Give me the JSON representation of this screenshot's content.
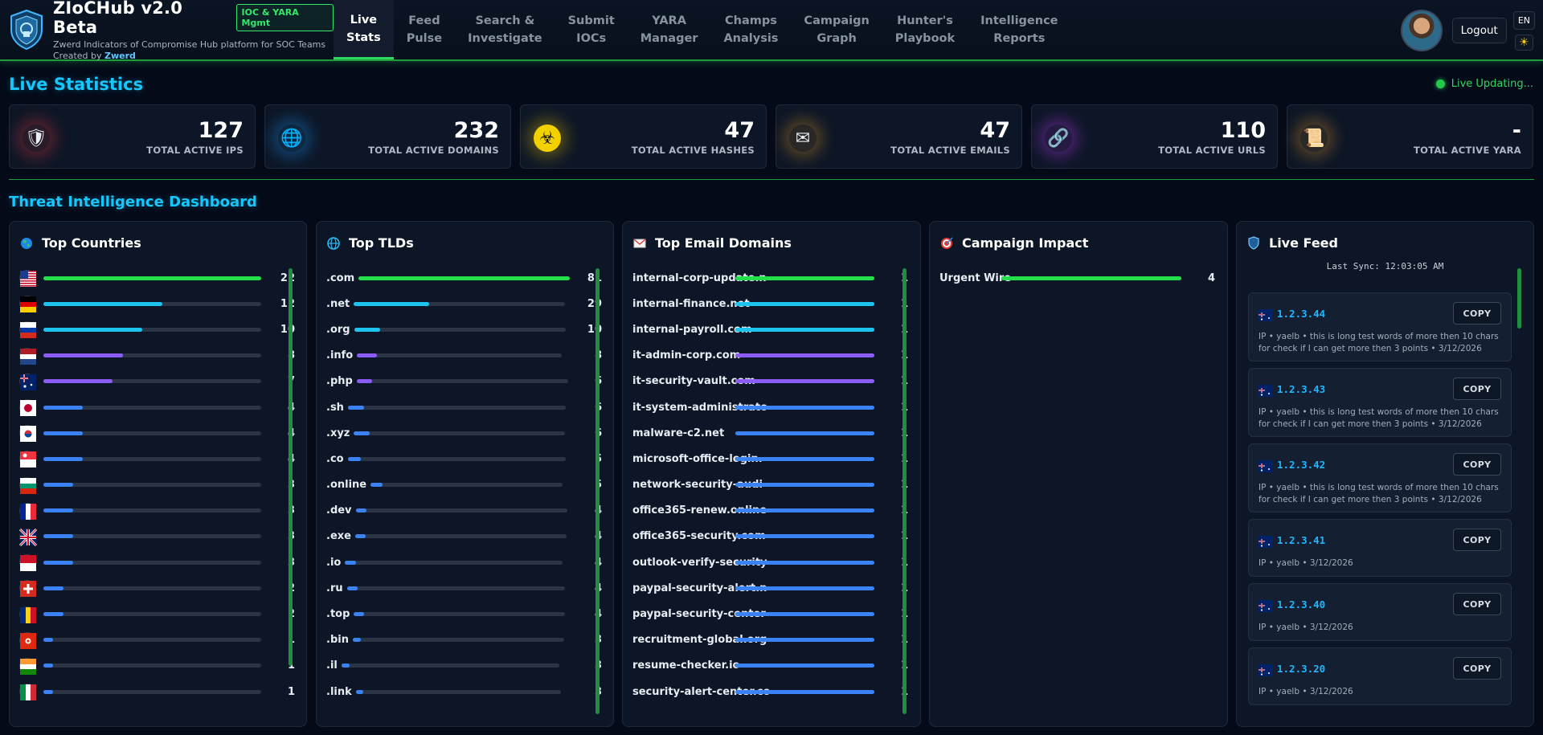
{
  "brand": {
    "title": "ZIoCHub v2.0 Beta",
    "badge": "IOC & YARA Mgmt",
    "subtitle": "Zwerd Indicators of Compromise Hub platform for SOC Teams",
    "credit_prefix": "Created by",
    "credit_name": "Zwerd"
  },
  "nav": [
    {
      "line1": "Live",
      "line2": "Stats",
      "active": true
    },
    {
      "line1": "Feed",
      "line2": "Pulse"
    },
    {
      "line1": "Search &",
      "line2": "Investigate"
    },
    {
      "line1": "Submit",
      "line2": "IOCs"
    },
    {
      "line1": "YARA",
      "line2": "Manager"
    },
    {
      "line1": "Champs",
      "line2": "Analysis"
    },
    {
      "line1": "Campaign",
      "line2": "Graph"
    },
    {
      "line1": "Hunter's",
      "line2": "Playbook"
    },
    {
      "line1": "Intelligence",
      "line2": "Reports"
    }
  ],
  "header_right": {
    "logout": "Logout",
    "lang": "EN",
    "theme_icon": "sun-icon"
  },
  "live": {
    "title": "Live Statistics",
    "status": "Live Updating..."
  },
  "stats": [
    {
      "value": "127",
      "label": "TOTAL ACTIVE IPS",
      "icon": "shield-icon",
      "glow": "#e23b3b"
    },
    {
      "value": "232",
      "label": "TOTAL ACTIVE DOMAINS",
      "icon": "globe-icon",
      "glow": "#1a9cff"
    },
    {
      "value": "47",
      "label": "TOTAL ACTIVE HASHES",
      "icon": "biohazard-icon",
      "glow": "#e6c300"
    },
    {
      "value": "47",
      "label": "TOTAL ACTIVE EMAILS",
      "icon": "envelope-icon",
      "glow": "#e09a2a"
    },
    {
      "value": "110",
      "label": "TOTAL ACTIVE URLS",
      "icon": "link-icon",
      "glow": "#c23bff"
    },
    {
      "value": "-",
      "label": "TOTAL ACTIVE YARA",
      "icon": "scroll-icon",
      "glow": "#e09a2a"
    }
  ],
  "dashboard": {
    "title": "Threat Intelligence Dashboard"
  },
  "countries": {
    "title": "Top Countries",
    "max": 22,
    "rows": [
      {
        "flag": "us",
        "value": 22,
        "color": "#22e04a"
      },
      {
        "flag": "de",
        "value": 12,
        "color": "#1ec4f0"
      },
      {
        "flag": "ru",
        "value": 10,
        "color": "#1ec4f0"
      },
      {
        "flag": "nl",
        "value": 8,
        "color": "#8b5cf6"
      },
      {
        "flag": "au",
        "value": 7,
        "color": "#8b5cf6"
      },
      {
        "flag": "jp",
        "value": 4,
        "color": "#3b82f6"
      },
      {
        "flag": "kr",
        "value": 4,
        "color": "#3b82f6"
      },
      {
        "flag": "sg",
        "value": 4,
        "color": "#3b82f6"
      },
      {
        "flag": "bg",
        "value": 3,
        "color": "#3b82f6"
      },
      {
        "flag": "fr",
        "value": 3,
        "color": "#3b82f6"
      },
      {
        "flag": "gb",
        "value": 3,
        "color": "#3b82f6"
      },
      {
        "flag": "id",
        "value": 3,
        "color": "#3b82f6"
      },
      {
        "flag": "ch",
        "value": 2,
        "color": "#3b82f6"
      },
      {
        "flag": "ro",
        "value": 2,
        "color": "#3b82f6"
      },
      {
        "flag": "hk",
        "value": 1,
        "color": "#3b82f6"
      },
      {
        "flag": "in",
        "value": 1,
        "color": "#3b82f6"
      },
      {
        "flag": "it",
        "value": 1,
        "color": "#3b82f6"
      }
    ]
  },
  "tlds": {
    "title": "Top TLDs",
    "max": 81,
    "rows": [
      {
        "label": ".com",
        "value": 81,
        "color": "#22e04a"
      },
      {
        "label": ".net",
        "value": 29,
        "color": "#1ec4f0"
      },
      {
        "label": ".org",
        "value": 10,
        "color": "#1ec4f0"
      },
      {
        "label": ".info",
        "value": 8,
        "color": "#8b5cf6"
      },
      {
        "label": ".php",
        "value": 6,
        "color": "#8b5cf6"
      },
      {
        "label": ".sh",
        "value": 6,
        "color": "#3b82f6"
      },
      {
        "label": ".xyz",
        "value": 6,
        "color": "#3b82f6"
      },
      {
        "label": ".co",
        "value": 5,
        "color": "#3b82f6"
      },
      {
        "label": ".online",
        "value": 5,
        "color": "#3b82f6"
      },
      {
        "label": ".dev",
        "value": 4,
        "color": "#3b82f6"
      },
      {
        "label": ".exe",
        "value": 4,
        "color": "#3b82f6"
      },
      {
        "label": ".io",
        "value": 4,
        "color": "#3b82f6"
      },
      {
        "label": ".ru",
        "value": 4,
        "color": "#3b82f6"
      },
      {
        "label": ".top",
        "value": 4,
        "color": "#3b82f6"
      },
      {
        "label": ".bin",
        "value": 3,
        "color": "#3b82f6"
      },
      {
        "label": ".il",
        "value": 3,
        "color": "#3b82f6"
      },
      {
        "label": ".link",
        "value": 3,
        "color": "#3b82f6"
      }
    ]
  },
  "emails": {
    "title": "Top Email Domains",
    "max": 1,
    "rows": [
      {
        "label": "internal-corp-update.n",
        "value": 1,
        "color": "#22e04a"
      },
      {
        "label": "internal-finance.net",
        "value": 1,
        "color": "#1ec4f0"
      },
      {
        "label": "internal-payroll.com",
        "value": 1,
        "color": "#1ec4f0"
      },
      {
        "label": "it-admin-corp.com",
        "value": 1,
        "color": "#8b5cf6"
      },
      {
        "label": "it-security-vault.com",
        "value": 1,
        "color": "#8b5cf6"
      },
      {
        "label": "it-system-administrato",
        "value": 1,
        "color": "#3b82f6"
      },
      {
        "label": "malware-c2.net",
        "value": 1,
        "color": "#3b82f6"
      },
      {
        "label": "microsoft-office-login.",
        "value": 1,
        "color": "#3b82f6"
      },
      {
        "label": "network-security-audi",
        "value": 1,
        "color": "#3b82f6"
      },
      {
        "label": "office365-renew.online",
        "value": 1,
        "color": "#3b82f6"
      },
      {
        "label": "office365-security.com",
        "value": 1,
        "color": "#3b82f6"
      },
      {
        "label": "outlook-verify-security",
        "value": 1,
        "color": "#3b82f6"
      },
      {
        "label": "paypal-security-alert.n",
        "value": 1,
        "color": "#3b82f6"
      },
      {
        "label": "paypal-security-center",
        "value": 1,
        "color": "#3b82f6"
      },
      {
        "label": "recruitment-global.org",
        "value": 1,
        "color": "#3b82f6"
      },
      {
        "label": "resume-checker.io",
        "value": 1,
        "color": "#3b82f6"
      },
      {
        "label": "security-alert-center.co",
        "value": 1,
        "color": "#3b82f6"
      }
    ]
  },
  "campaigns": {
    "title": "Campaign Impact",
    "max": 4,
    "rows": [
      {
        "label": "Urgent Wire",
        "value": 4,
        "color": "#22e04a"
      }
    ]
  },
  "feed": {
    "title": "Live Feed",
    "sync": "Last Sync: 12:03:05 AM",
    "copy_label": "COPY",
    "items": [
      {
        "ip": "1.2.3.44",
        "meta": "IP • yaelb • this is long test words of more then 10 chars for check if I can get more then 3 points • 3/12/2026"
      },
      {
        "ip": "1.2.3.43",
        "meta": "IP • yaelb • this is long test words of more then 10 chars for check if I can get more then 3 points • 3/12/2026"
      },
      {
        "ip": "1.2.3.42",
        "meta": "IP • yaelb • this is long test words of more then 10 chars for check if I can get more then 3 points • 3/12/2026"
      },
      {
        "ip": "1.2.3.41",
        "meta": "IP • yaelb • 3/12/2026"
      },
      {
        "ip": "1.2.3.40",
        "meta": "IP • yaelb • 3/12/2026"
      },
      {
        "ip": "1.2.3.20",
        "meta": "IP • yaelb • 3/12/2026"
      }
    ]
  }
}
